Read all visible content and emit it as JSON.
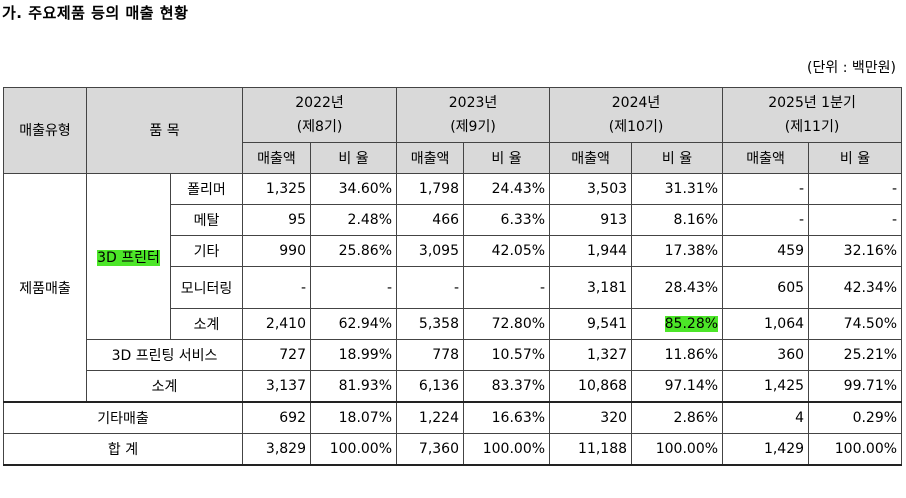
{
  "title": "가. 주요제품 등의 매출 현황",
  "unit": "(단위 : 백만원)",
  "header": {
    "type": "매출유형",
    "item": "품 목",
    "periods": [
      {
        "year": "2022년",
        "term": "(제8기)"
      },
      {
        "year": "2023년",
        "term": "(제9기)"
      },
      {
        "year": "2024년",
        "term": "(제10기)"
      },
      {
        "year": "2025년 1분기",
        "term": "(제11기)"
      }
    ],
    "sales": "매출액",
    "ratio": "비 율"
  },
  "group": {
    "product_sales": "제품매출",
    "printer": "3D 프린터"
  },
  "rows": [
    {
      "label": "폴리머",
      "v": [
        "1,325",
        "34.60%",
        "1,798",
        "24.43%",
        "3,503",
        "31.31%",
        "-",
        "-"
      ]
    },
    {
      "label": "메탈",
      "v": [
        "95",
        "2.48%",
        "466",
        "6.33%",
        "913",
        "8.16%",
        "-",
        "-"
      ]
    },
    {
      "label": "기타",
      "v": [
        "990",
        "25.86%",
        "3,095",
        "42.05%",
        "1,944",
        "17.38%",
        "459",
        "32.16%"
      ]
    },
    {
      "label": "모니터링",
      "v": [
        "-",
        "-",
        "-",
        "-",
        "3,181",
        "28.43%",
        "605",
        "42.34%"
      ]
    },
    {
      "label": "소계",
      "v": [
        "2,410",
        "62.94%",
        "5,358",
        "72.80%",
        "9,541",
        "85.28%",
        "1,064",
        "74.50%"
      ]
    },
    {
      "label": "3D 프린팅 서비스",
      "v": [
        "727",
        "18.99%",
        "778",
        "10.57%",
        "1,327",
        "11.86%",
        "360",
        "25.21%"
      ]
    },
    {
      "label": "소계",
      "v": [
        "3,137",
        "81.93%",
        "6,136",
        "83.37%",
        "10,868",
        "97.14%",
        "1,425",
        "99.71%"
      ]
    },
    {
      "label": "기타매출",
      "v": [
        "692",
        "18.07%",
        "1,224",
        "16.63%",
        "320",
        "2.86%",
        "4",
        "0.29%"
      ]
    },
    {
      "label": "합 계",
      "v": [
        "3,829",
        "100.00%",
        "7,360",
        "100.00%",
        "11,188",
        "100.00%",
        "1,429",
        "100.00%"
      ]
    }
  ]
}
